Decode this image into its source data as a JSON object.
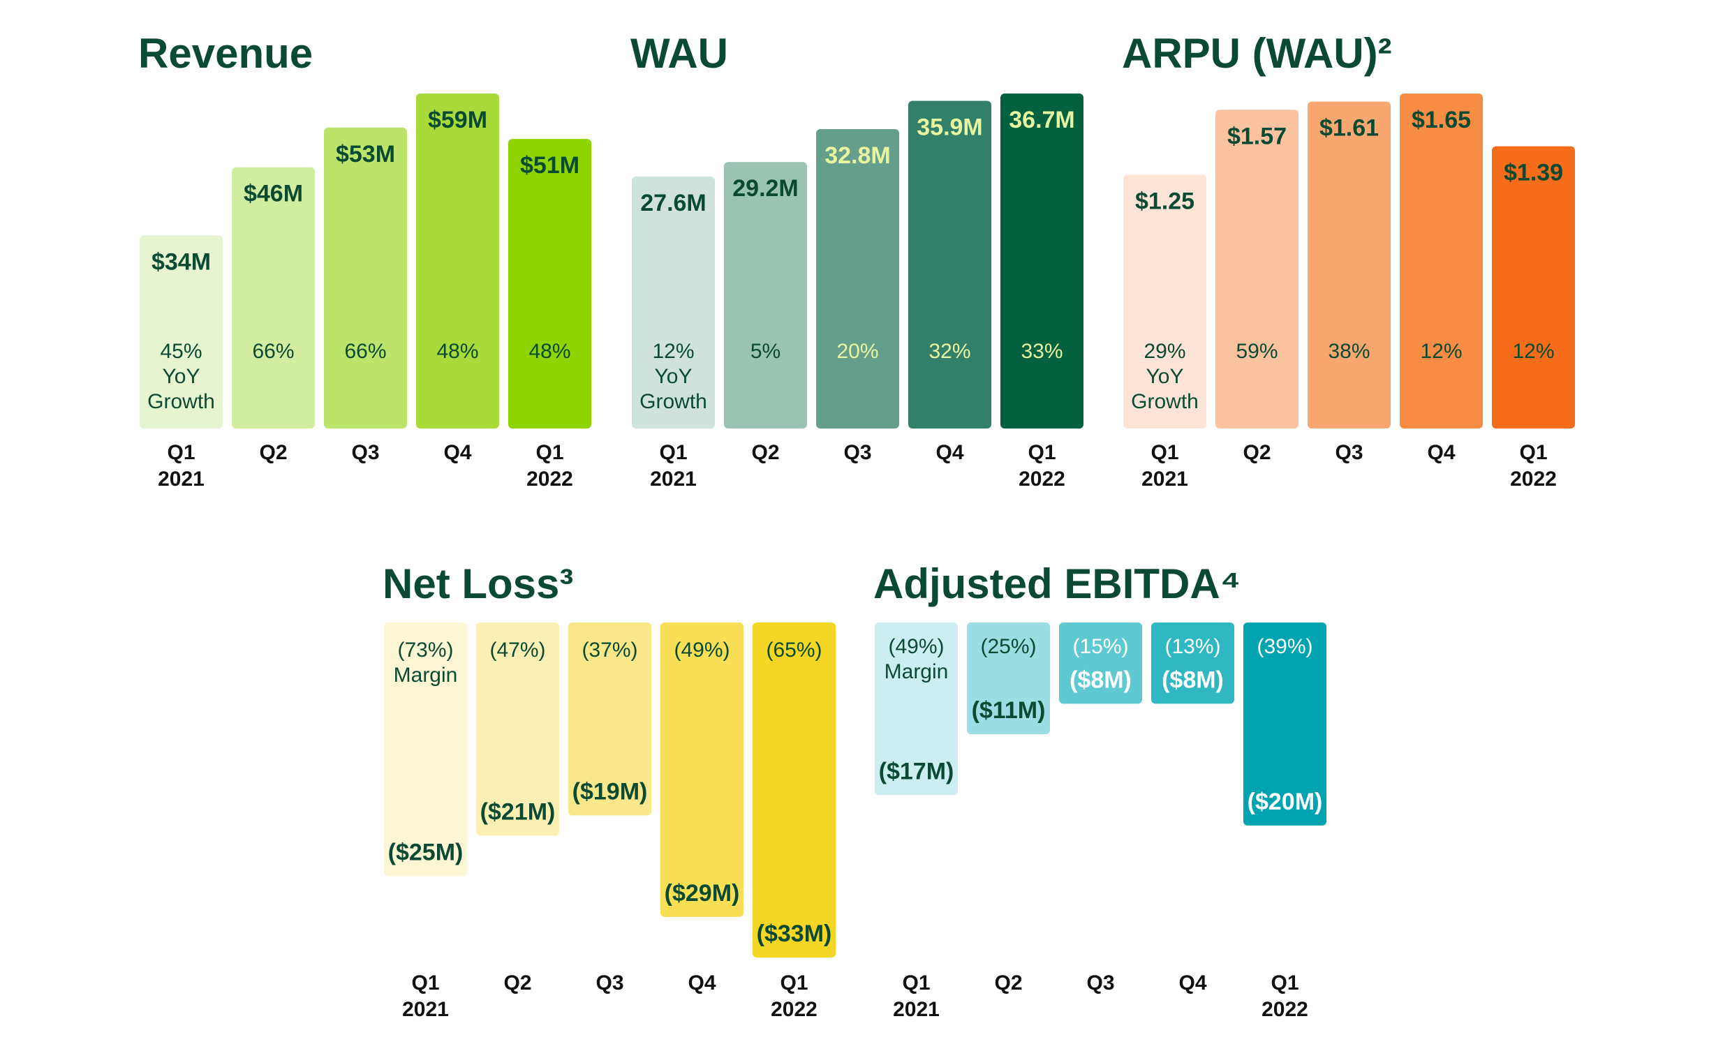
{
  "chart_data": [
    {
      "type": "bar",
      "title": "Revenue",
      "categories": [
        "Q1 2021",
        "Q2",
        "Q3",
        "Q4",
        "Q1 2022"
      ],
      "values": [
        34,
        46,
        53,
        59,
        51
      ],
      "value_labels": [
        "$34M",
        "$46M",
        "$53M",
        "$59M",
        "$51M"
      ],
      "colors": [
        "#e6f4cf",
        "#d3eda0",
        "#bce46b",
        "#a8da3a",
        "#8ed400"
      ],
      "text_colors": [
        "#0b4a32",
        "#0b4a32",
        "#0b4a32",
        "#0b4a32",
        "#0b4a32"
      ],
      "annotation": {
        "label": "YoY Growth",
        "values": [
          45,
          66,
          66,
          48,
          48
        ],
        "value_labels": [
          "45%",
          "66%",
          "66%",
          "48%",
          "48%"
        ]
      }
    },
    {
      "type": "bar",
      "title": "WAU",
      "categories": [
        "Q1 2021",
        "Q2",
        "Q3",
        "Q4",
        "Q1 2022"
      ],
      "values": [
        27.6,
        29.2,
        32.8,
        35.9,
        36.7
      ],
      "value_labels": [
        "27.6M",
        "29.2M",
        "32.8M",
        "35.9M",
        "36.7M"
      ],
      "colors": [
        "#cfe3dc",
        "#9bc3b3",
        "#659f8b",
        "#33806a",
        "#03613f"
      ],
      "text_colors": [
        "#0b4a32",
        "#0b4a32",
        "#e8f5a0",
        "#e8f5a0",
        "#e8f5a0"
      ],
      "annotation": {
        "label": "YoY Growth",
        "values": [
          12,
          5,
          20,
          32,
          33
        ],
        "value_labels": [
          "12%",
          "5%",
          "20%",
          "32%",
          "33%"
        ]
      }
    },
    {
      "type": "bar",
      "title": "ARPU (WAU)²",
      "categories": [
        "Q1 2021",
        "Q2",
        "Q3",
        "Q4",
        "Q1 2022"
      ],
      "values": [
        1.25,
        1.57,
        1.61,
        1.65,
        1.39
      ],
      "value_labels": [
        "$1.25",
        "$1.57",
        "$1.61",
        "$1.65",
        "$1.39"
      ],
      "colors": [
        "#fde4d6",
        "#fbc2a0",
        "#f9a771",
        "#f78c45",
        "#f56c1a"
      ],
      "text_colors": [
        "#0b4a32",
        "#0b4a32",
        "#0b4a32",
        "#0b4a32",
        "#0b4a32"
      ],
      "annotation": {
        "label": "YoY Growth",
        "values": [
          29,
          59,
          38,
          12,
          12
        ],
        "value_labels": [
          "29%",
          "59%",
          "38%",
          "12%",
          "12%"
        ]
      }
    },
    {
      "type": "bar",
      "title": "Net Loss³",
      "categories": [
        "Q1 2021",
        "Q2",
        "Q3",
        "Q4",
        "Q1 2022"
      ],
      "values": [
        -25,
        -21,
        -19,
        -29,
        -33
      ],
      "value_labels": [
        "($25M)",
        "($21M)",
        "($19M)",
        "($29M)",
        "($33M)"
      ],
      "colors": [
        "#fdf6d5",
        "#fcefb3",
        "#fae78a",
        "#f8df55",
        "#f6d624"
      ],
      "text_colors": [
        "#0b4a32",
        "#0b4a32",
        "#0b4a32",
        "#0b4a32",
        "#0b4a32"
      ],
      "annotation": {
        "label": "Margin",
        "values": [
          -73,
          -47,
          -37,
          -49,
          -65
        ],
        "value_labels": [
          "(73%)",
          "(47%)",
          "(37%)",
          "(49%)",
          "(65%)"
        ]
      }
    },
    {
      "type": "bar",
      "title": "Adjusted EBITDA⁴",
      "categories": [
        "Q1 2021",
        "Q2",
        "Q3",
        "Q4",
        "Q1 2022"
      ],
      "values": [
        -17,
        -11,
        -8,
        -8,
        -20
      ],
      "value_labels": [
        "($17M)",
        "($11M)",
        "($8M)",
        "($8M)",
        "($20M)"
      ],
      "colors": [
        "#cdeef0",
        "#9adde2",
        "#5fc9d1",
        "#30b8c2",
        "#00a3b0"
      ],
      "text_colors": [
        "#0b4a32",
        "#0b4a32",
        "#ffffff",
        "#ffffff",
        "#ffffff"
      ],
      "annotation": {
        "label": "Margin",
        "values": [
          -49,
          -25,
          -15,
          -13,
          -39
        ],
        "value_labels": [
          "(49%)",
          "(25%)",
          "(15%)",
          "(13%)",
          "(39%)"
        ]
      }
    }
  ]
}
